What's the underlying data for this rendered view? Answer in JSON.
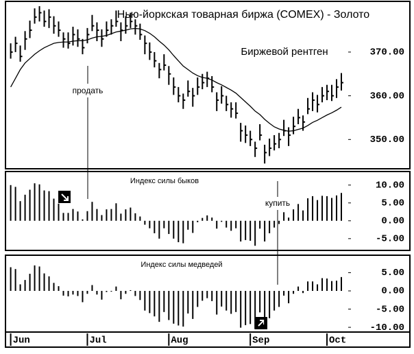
{
  "chart_data": [
    {
      "type": "ohlc",
      "title": "Нью-йоркская товарная биржа (COMEX) - Золото",
      "subtitle": "Биржевой рентген",
      "annotations": [
        "продать"
      ],
      "color": "#000000",
      "high": [
        372,
        373.5,
        371.5,
        374.8,
        377.2,
        380,
        380.5,
        379.5,
        379.8,
        378.2,
        377,
        374.5,
        374.5,
        375.8,
        375.2,
        373,
        375.5,
        378.5,
        376.8,
        375.2,
        377,
        377.5,
        379.5,
        376.8,
        378.2,
        379,
        377.5,
        376.5,
        373.8,
        372.2,
        370,
        367.5,
        369.5,
        366.8,
        364.2,
        362,
        360.5,
        363.5,
        361.8,
        364.2,
        365,
        365.5,
        364.5,
        360.8,
        362.2,
        360,
        358.5,
        358.5,
        353.8,
        353.2,
        352,
        349.5,
        353.5,
        348.8,
        350.2,
        351,
        351.5,
        354.5,
        352.8,
        355.2,
        357,
        355.5,
        359.5,
        360.8,
        360.2,
        362,
        362.5,
        362.5,
        363.8,
        365.2
      ],
      "low": [
        368.5,
        370,
        367.8,
        370.5,
        373.2,
        376.5,
        377,
        375.8,
        375.5,
        374.2,
        373.5,
        371,
        370.8,
        371.5,
        371.2,
        369.5,
        372,
        374.8,
        372.5,
        371.2,
        373.5,
        374,
        375.8,
        372.5,
        374.2,
        375.5,
        374,
        372.8,
        369.5,
        368.2,
        366.5,
        364,
        365.8,
        362.5,
        360.2,
        358.5,
        357,
        359.8,
        357.5,
        360.2,
        361.5,
        362,
        360.8,
        356.5,
        358.2,
        356.5,
        355,
        354.8,
        349.5,
        349.2,
        348.5,
        346,
        349.8,
        344.5,
        346.2,
        347.5,
        348,
        350.8,
        348.5,
        351.2,
        353.5,
        352,
        355.8,
        356.5,
        356.2,
        358.5,
        359,
        358.8,
        359.5,
        361.2
      ],
      "close": [
        370,
        372,
        369,
        373,
        375,
        378,
        379,
        377,
        378,
        376,
        375,
        373,
        372,
        374,
        373,
        371,
        374,
        376,
        375,
        373,
        375,
        376,
        377,
        375,
        376,
        377,
        376,
        374,
        372,
        370,
        368,
        366,
        367,
        365,
        362,
        360,
        359,
        361,
        360,
        362,
        363,
        364,
        362,
        359,
        360,
        358,
        357,
        356,
        352,
        351,
        350,
        348,
        351,
        347,
        348,
        349,
        350,
        352,
        351,
        353,
        355,
        354,
        357,
        359,
        358,
        360,
        361,
        360,
        362,
        363
      ],
      "moving_average": [
        362,
        364,
        366,
        367.5,
        368.5,
        369.5,
        370.3,
        371,
        371.5,
        372,
        372.2,
        372.3,
        372.3,
        372.5,
        372.6,
        372.6,
        372.8,
        373.2,
        373.5,
        373.6,
        373.8,
        374.2,
        374.6,
        374.8,
        375,
        375.3,
        375.4,
        375.3,
        374.9,
        374.3,
        373.5,
        372.5,
        371.6,
        370.5,
        369.2,
        368,
        366.8,
        366,
        365.2,
        364.6,
        364.2,
        364,
        363.6,
        363,
        362.5,
        361.9,
        361.3,
        360.6,
        359.6,
        358.6,
        357.6,
        356.5,
        355.7,
        354.6,
        353.7,
        352.9,
        352.4,
        352.1,
        351.9,
        352,
        352.3,
        352.6,
        353.2,
        353.9,
        354.4,
        355,
        355.6,
        356.1,
        356.7,
        357.4
      ],
      "xlim": [
        -0.8,
        70
      ],
      "ylim": [
        343.3,
        381.6
      ],
      "yticks": [
        {
          "value": 350,
          "label": "350.00"
        },
        {
          "value": 360,
          "label": "360.00"
        },
        {
          "value": 370,
          "label": "370.00"
        }
      ]
    },
    {
      "type": "bar",
      "title": "Индекс силы быков",
      "annotations": [
        "купить"
      ],
      "color": "#000000",
      "values": [
        10,
        9.5,
        5.5,
        7.3,
        8.7,
        10.5,
        10.2,
        8.5,
        8.3,
        6.2,
        4.8,
        2.2,
        2.2,
        3.3,
        2.6,
        0.4,
        2.7,
        5.3,
        3.3,
        1.6,
        3.2,
        3.3,
        4.9,
        2,
        3.2,
        3.7,
        2.1,
        1.2,
        -1.1,
        -2.1,
        -3.5,
        -5,
        -2.1,
        -3.7,
        -5,
        -6,
        -6.3,
        -2.5,
        -3.4,
        -0.4,
        0.8,
        1.5,
        0.9,
        -2.2,
        -0.3,
        -1.9,
        -2.8,
        -2.1,
        -5.8,
        -5.4,
        -5.6,
        -7,
        -2.2,
        -5.8,
        -3.5,
        -1.9,
        -0.9,
        2.4,
        0.9,
        3.2,
        4.7,
        2.9,
        6.3,
        6.9,
        5.8,
        7,
        6.9,
        6.4,
        7.1,
        7.8
      ],
      "xlim": [
        -0.8,
        70
      ],
      "ylim": [
        -8.3,
        13.8
      ],
      "yticks": [
        {
          "value": 10,
          "label": "10.00"
        },
        {
          "value": 5,
          "label": "5.00"
        },
        {
          "value": 0,
          "label": "0.00"
        },
        {
          "value": -5,
          "label": "-5.00"
        }
      ]
    },
    {
      "type": "bar",
      "title": "Индекс силы медведей",
      "color": "#000000",
      "values": [
        6.5,
        6,
        1.8,
        3,
        4.7,
        7,
        6.7,
        4.8,
        4,
        2.2,
        1.3,
        -1.3,
        -1.5,
        -1,
        -1.4,
        -3.1,
        -0.8,
        1.6,
        -1,
        -2.4,
        -0.3,
        -0.2,
        1.2,
        -2.3,
        -0.8,
        0.2,
        -1.4,
        -2.5,
        -5.4,
        -6.1,
        -7,
        -8.5,
        -5.8,
        -8,
        -9,
        -9.5,
        -9.8,
        -6.2,
        -7.7,
        -4.4,
        -2.7,
        -2,
        -2.8,
        -6.5,
        -4.3,
        -5.4,
        -6.3,
        -5.8,
        -10.1,
        -9.4,
        -9.1,
        -10.5,
        -5.9,
        -10.1,
        -7.5,
        -5.4,
        -4.4,
        -1.3,
        -3.4,
        -0.8,
        1.2,
        -0.6,
        2.6,
        2.6,
        1.8,
        3.5,
        3.4,
        2.7,
        2.8,
        3.8
      ],
      "xlim": [
        -0.8,
        70
      ],
      "ylim": [
        -11.3,
        9.8
      ],
      "yticks": [
        {
          "value": 5,
          "label": "5.00"
        },
        {
          "value": 0,
          "label": "0.00"
        },
        {
          "value": -5,
          "label": "-5.00"
        },
        {
          "value": -10,
          "label": "-10.00"
        }
      ],
      "xticks": [
        {
          "value": 0,
          "label": "Jun"
        },
        {
          "value": 16,
          "label": "Jul"
        },
        {
          "value": 33,
          "label": "Aug"
        },
        {
          "value": 50,
          "label": "Sep"
        },
        {
          "value": 66,
          "label": "Oct"
        }
      ]
    }
  ]
}
